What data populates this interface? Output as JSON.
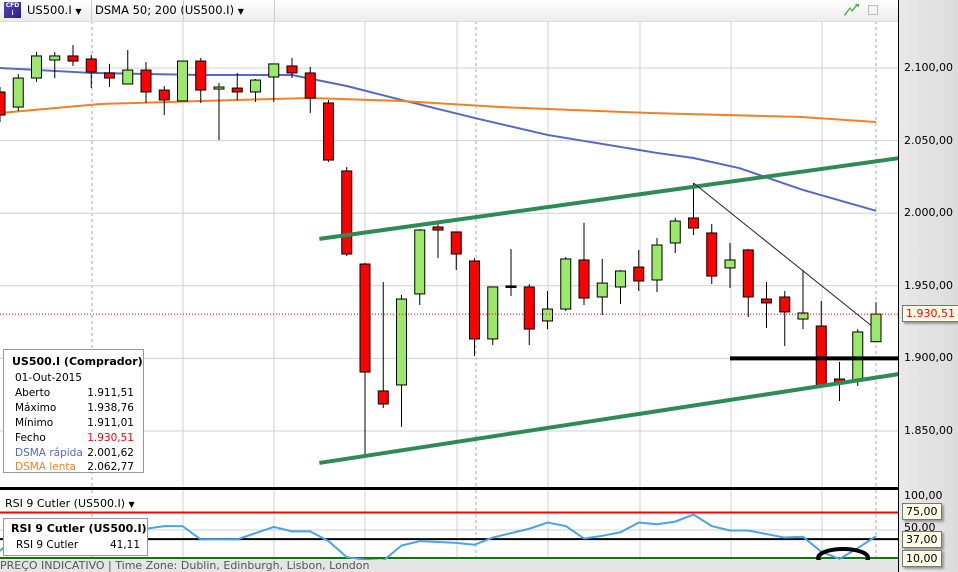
{
  "toolbar": {
    "instrument": "US500.I",
    "indicator": "DSMA 50; 200 (US500.I)",
    "dropdown_glyph": "▼",
    "instrument_icon": "cfd-icon",
    "icons": [
      "trend-arrow-icon",
      "maximize-icon"
    ]
  },
  "info_box": {
    "title": "US500.I (Comprador)",
    "date": "01-Out-2015",
    "rows": [
      {
        "label": "Aberto",
        "value": "1.911,51"
      },
      {
        "label": "Máximo",
        "value": "1.938,76"
      },
      {
        "label": "Mínimo",
        "value": "1.911,01"
      },
      {
        "label": "Fecho",
        "value": "1.930,51"
      },
      {
        "label": "DSMA rápida",
        "value": "2.001,62"
      },
      {
        "label": "DSMA lenta",
        "value": "2.062,77"
      }
    ]
  },
  "price_axis": {
    "labels": [
      "2.100,00",
      "2.050,00",
      "2.000,00",
      "1.950,00",
      "1.900,00",
      "1.850,00"
    ],
    "values": [
      2100,
      2050,
      2000,
      1950,
      1900,
      1850
    ],
    "last_price_label": "1.930,51",
    "last_price": 1930.51
  },
  "rsi_panel": {
    "title": "RSI 9 Cutler (US500.I)",
    "legend_title": "RSI 9 Cutler (US500.I)",
    "legend_label": "RSI 9 Cutler",
    "legend_value": "41,11",
    "axis_labels": [
      "100,00",
      "50,00"
    ],
    "axis_values": [
      100,
      50
    ],
    "levels": [
      {
        "label": "75,00",
        "value": 75,
        "color": "#ff0000"
      },
      {
        "label": "37,00",
        "value": 37,
        "color": "#000000"
      },
      {
        "label": "10,00",
        "value": 10,
        "color": "#008000"
      }
    ]
  },
  "footer": {
    "text": "PREÇO INDICATIVO | Time Zone: Dublin, Edinburgh, Lisbon, London"
  },
  "colors": {
    "up": "#9be86a",
    "down": "#ff0000",
    "fast_ma": "#5468c8",
    "slow_ma": "#f57f25",
    "channel": "#2e8b57",
    "rsi": "#4aa3e8",
    "last_price": "#ff0000"
  },
  "chart_data": {
    "type": "candlestick",
    "ylim": [
      1815,
      2125
    ],
    "candles_ohlc": [
      [
        2083.5,
        2086.9,
        2062.8,
        2067.6
      ],
      [
        2073.1,
        2095.9,
        2070.4,
        2093.1
      ],
      [
        2093.1,
        2111.0,
        2090.4,
        2108.3
      ],
      [
        2105.5,
        2111.0,
        2093.1,
        2108.3
      ],
      [
        2108.3,
        2115.8,
        2101.4,
        2104.8
      ],
      [
        2106.2,
        2109.0,
        2086.2,
        2097.2
      ],
      [
        2096.6,
        2102.8,
        2086.9,
        2093.1
      ],
      [
        2089.0,
        2112.4,
        2089.0,
        2098.6
      ],
      [
        2098.6,
        2104.1,
        2075.9,
        2083.5
      ],
      [
        2084.8,
        2087.6,
        2067.6,
        2078.0
      ],
      [
        2077.3,
        2104.8,
        2077.3,
        2104.8
      ],
      [
        2104.8,
        2106.9,
        2075.9,
        2084.8
      ],
      [
        2085.5,
        2089.7,
        2050.4,
        2086.9
      ],
      [
        2086.2,
        2096.6,
        2078.0,
        2083.5
      ],
      [
        2083.5,
        2092.4,
        2076.6,
        2091.7
      ],
      [
        2093.8,
        2102.8,
        2076.6,
        2102.8
      ],
      [
        2101.4,
        2106.9,
        2093.1,
        2096.6
      ],
      [
        2096.6,
        2100.7,
        2069.0,
        2079.3
      ],
      [
        2075.9,
        2078.0,
        2035.3,
        2036.6
      ],
      [
        2029.1,
        2031.8,
        1970.5,
        1971.9
      ],
      [
        1965.0,
        1965.7,
        1833.5,
        1890.6
      ],
      [
        1877.6,
        1952.6,
        1865.8,
        1868.6
      ],
      [
        1881.7,
        1943.7,
        1852.8,
        1940.9
      ],
      [
        1944.4,
        1989.1,
        1936.8,
        1988.4
      ],
      [
        1990.5,
        1993.3,
        1969.1,
        1988.4
      ],
      [
        1987.1,
        1987.1,
        1960.9,
        1971.9
      ],
      [
        1967.1,
        1969.1,
        1901.7,
        1913.4
      ],
      [
        1913.4,
        1949.2,
        1909.2,
        1949.2
      ],
      [
        1949.9,
        1975.3,
        1943.0,
        1949.9
      ],
      [
        1949.2,
        1951.2,
        1909.2,
        1920.2
      ],
      [
        1925.8,
        1946.4,
        1920.2,
        1934.0
      ],
      [
        1934.0,
        1969.8,
        1932.6,
        1968.5
      ],
      [
        1967.8,
        1993.3,
        1936.8,
        1941.6
      ],
      [
        1942.3,
        1968.5,
        1929.9,
        1951.9
      ],
      [
        1949.2,
        1960.9,
        1937.5,
        1960.2
      ],
      [
        1962.9,
        1974.7,
        1946.4,
        1953.3
      ],
      [
        1954.0,
        1982.9,
        1945.7,
        1978.1
      ],
      [
        1979.5,
        1996.7,
        1972.6,
        1994.6
      ],
      [
        1996.7,
        2020.8,
        1985.0,
        1989.8
      ],
      [
        1986.4,
        1992.6,
        1951.2,
        1956.7
      ],
      [
        1962.3,
        1979.5,
        1948.5,
        1967.8
      ],
      [
        1974.7,
        1975.3,
        1928.5,
        1942.3
      ],
      [
        1940.9,
        1952.6,
        1920.9,
        1938.2
      ],
      [
        1942.3,
        1946.4,
        1908.5,
        1932.0
      ],
      [
        1927.1,
        1960.9,
        1920.2,
        1931.3
      ],
      [
        1922.3,
        1939.5,
        1881.7,
        1881.7
      ],
      [
        1885.8,
        1897.5,
        1870.7,
        1882.4
      ],
      [
        1885.1,
        1920.2,
        1881.0,
        1918.2
      ],
      [
        1911.51,
        1938.76,
        1911.01,
        1930.51
      ]
    ],
    "series": [
      {
        "name": "DSMA rápida",
        "points": [
          [
            0,
            2100
          ],
          [
            5,
            2096.6
          ],
          [
            11,
            2095.2
          ],
          [
            16,
            2095.2
          ],
          [
            19,
            2087.6
          ],
          [
            22,
            2078
          ],
          [
            26,
            2065.6
          ],
          [
            30,
            2053.9
          ],
          [
            36,
            2041.5
          ],
          [
            38,
            2038
          ],
          [
            40.5,
            2031.1
          ],
          [
            44,
            2016
          ],
          [
            48,
            2001.62
          ]
        ]
      },
      {
        "name": "DSMA lenta",
        "points": [
          [
            0,
            2069
          ],
          [
            5.5,
            2075.2
          ],
          [
            11,
            2077.3
          ],
          [
            17,
            2079.3
          ],
          [
            22,
            2077.3
          ],
          [
            27.4,
            2073.1
          ],
          [
            35.6,
            2069
          ],
          [
            43.8,
            2066.3
          ],
          [
            48,
            2062.77
          ]
        ]
      }
    ],
    "drawings": [
      {
        "kind": "channel-upper",
        "from": [
          17.5,
          1982.3
        ],
        "to": [
          52.5,
          2043.6
        ]
      },
      {
        "kind": "channel-lower",
        "from": [
          17.5,
          1828
        ],
        "to": [
          49.3,
          1889.3
        ]
      },
      {
        "kind": "trendline",
        "from": [
          38,
          2020.8
        ],
        "to": [
          47.7,
          1923.0
        ]
      },
      {
        "kind": "horizontal",
        "from": [
          40,
          1900
        ],
        "to": [
          49.4,
          1900
        ]
      }
    ],
    "rsi": {
      "ylim": [
        0,
        100
      ],
      "values": [
        20.2,
        43,
        43,
        43,
        43,
        43,
        43,
        45.5,
        51.8,
        55.6,
        55.6,
        36.6,
        36.6,
        36.6,
        45.5,
        54.4,
        48,
        48,
        34.1,
        11.3,
        7.5,
        6.2,
        27.8,
        34.1,
        32.8,
        31.6,
        29,
        39.2,
        45.5,
        51.8,
        60.7,
        55.6,
        37.9,
        41.7,
        46.8,
        60.7,
        58.2,
        62,
        72.1,
        55.6,
        49.3,
        49.3,
        44.2,
        39.2,
        40.4,
        18.9,
        8.7,
        24,
        41.11
      ],
      "annotation": {
        "kind": "ellipse",
        "center": [
          46.2,
          10
        ]
      }
    }
  }
}
